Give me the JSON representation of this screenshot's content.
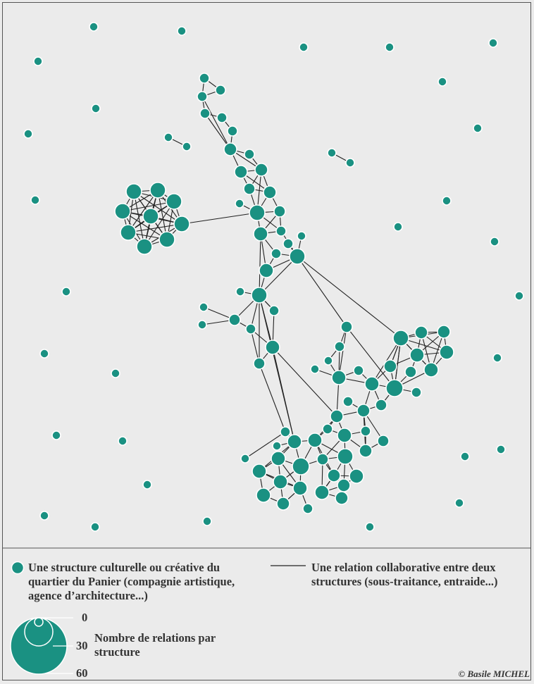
{
  "colors": {
    "node": "#1a9182",
    "node_stroke": "#ffffff",
    "edge": "#222222",
    "background": "#ebebeb"
  },
  "legend": {
    "node_label": "Une structure culturelle ou créative du quartier du Panier (compagnie artistique, agence d’architecture...)",
    "edge_label": "Une relation collaborative entre deux structures (sous-traitance, entraide...)",
    "size_title": "Nombre de relations par structure",
    "size_values": [
      "0",
      "30",
      "60"
    ]
  },
  "credit": "© Basile MICHEL"
}
